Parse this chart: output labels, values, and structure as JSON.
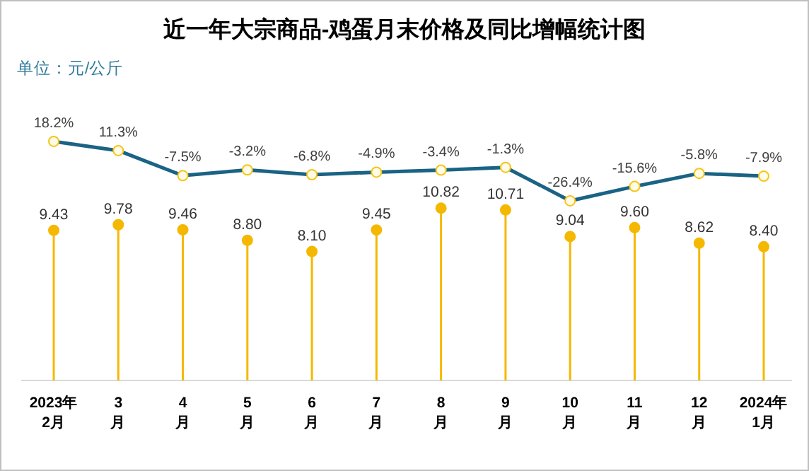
{
  "chart_data": {
    "type": "line",
    "title": "近一年大宗商品-鸡蛋月末价格及同比增幅统计图",
    "subtitle": "单位：元/公斤",
    "categories": [
      "2023年\n2月",
      "3\n月",
      "4\n月",
      "5\n月",
      "6\n月",
      "7\n月",
      "8\n月",
      "9\n月",
      "10\n月",
      "11\n月",
      "12\n月",
      "2024年\n1月"
    ],
    "marker": "circle",
    "tick_labels": "x",
    "ylim": [
      0,
      23.8
    ],
    "y2lim": [
      -161.3,
      123.3
    ],
    "series": [
      {
        "type": "line",
        "axis": "y2",
        "color": "#1a6384",
        "values": [
          18.2,
          11.3,
          -7.5,
          -3.2,
          -6.8,
          -4.9,
          -3.4,
          -1.3,
          -26.4,
          -15.6,
          -5.8,
          -7.9
        ],
        "value_labels": [
          "18.2%",
          "11.3%",
          "-7.5%",
          "-3.2%",
          "-6.8%",
          "-4.9%",
          "-3.4%",
          "-1.3%",
          "-26.4%",
          "-15.6%",
          "-5.8%",
          "-7.9%"
        ]
      },
      {
        "type": "lollipop",
        "axis": "y",
        "color": "#f5b800",
        "values": [
          9.43,
          9.78,
          9.46,
          8.8,
          8.1,
          9.45,
          10.82,
          10.71,
          9.04,
          9.6,
          8.62,
          8.4
        ],
        "value_labels": [
          "9.43",
          "9.78",
          "9.46",
          "8.80",
          "8.10",
          "9.45",
          "10.82",
          "10.71",
          "9.04",
          "9.60",
          "8.62",
          "8.40"
        ]
      }
    ]
  }
}
